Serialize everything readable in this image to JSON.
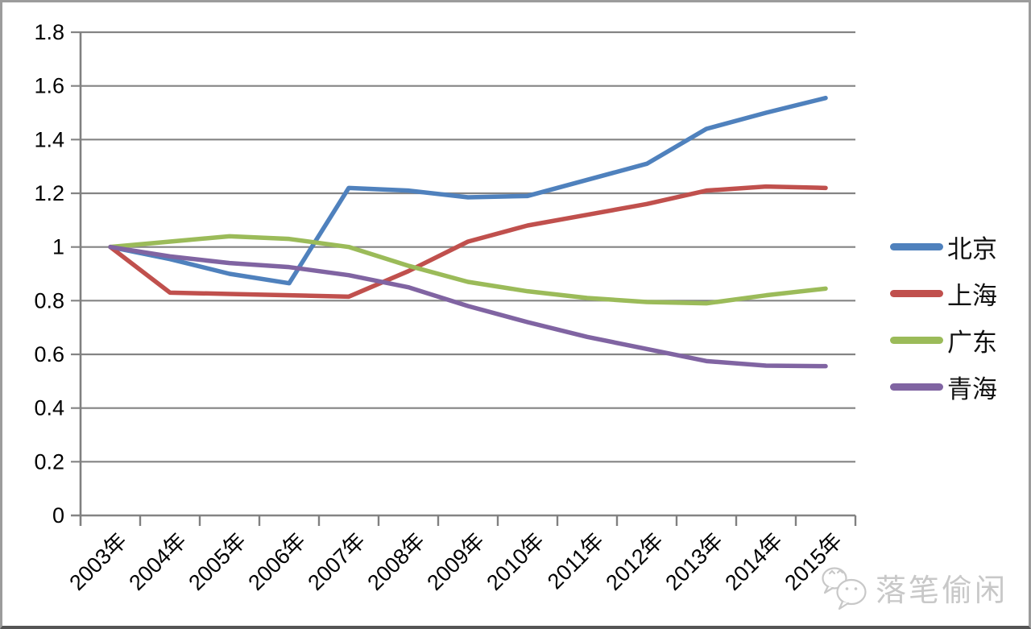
{
  "chart_data": {
    "type": "line",
    "title": "",
    "xlabel": "",
    "ylabel": "",
    "categories": [
      "2003年",
      "2004年",
      "2005年",
      "2006年",
      "2007年",
      "2008年",
      "2009年",
      "2010年",
      "2011年",
      "2012年",
      "2013年",
      "2014年",
      "2015年"
    ],
    "series": [
      {
        "name": "北京",
        "slug": "beijing",
        "color": "#4F81BD",
        "values": [
          1.0,
          0.955,
          0.9,
          0.865,
          1.22,
          1.21,
          1.185,
          1.19,
          1.25,
          1.31,
          1.44,
          1.5,
          1.555
        ]
      },
      {
        "name": "上海",
        "slug": "shanghai",
        "color": "#C0504D",
        "values": [
          1.0,
          0.83,
          0.825,
          0.82,
          0.815,
          0.91,
          1.02,
          1.08,
          1.12,
          1.16,
          1.21,
          1.225,
          1.22
        ]
      },
      {
        "name": "广东",
        "slug": "guangdong",
        "color": "#9BBB59",
        "values": [
          1.0,
          1.02,
          1.04,
          1.03,
          1.0,
          0.93,
          0.87,
          0.835,
          0.81,
          0.795,
          0.79,
          0.82,
          0.845
        ]
      },
      {
        "name": "青海",
        "slug": "qinghai",
        "color": "#8064A2",
        "values": [
          1.0,
          0.965,
          0.94,
          0.925,
          0.895,
          0.85,
          0.78,
          0.72,
          0.665,
          0.62,
          0.575,
          0.558,
          0.556
        ]
      }
    ],
    "ylim": [
      0,
      1.8
    ],
    "ytick_step": 0.2,
    "ytick_labels": [
      "0",
      "0.2",
      "0.4",
      "0.6",
      "0.8",
      "1",
      "1.2",
      "1.4",
      "1.6",
      "1.8"
    ],
    "grid": "horizontal",
    "legend_position": "right",
    "axis_color": "#808080",
    "grid_color": "#848484",
    "line_width": 5.5
  },
  "watermark": {
    "icon": "wechat-icon",
    "label": "落笔偷闲",
    "color": "#c8c8c8"
  }
}
